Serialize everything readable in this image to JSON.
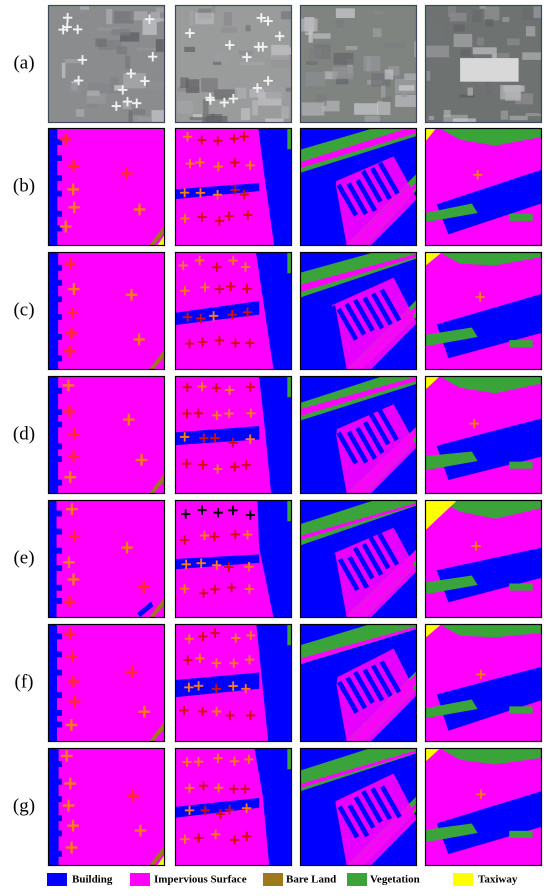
{
  "rows": [
    {
      "label": "(a)"
    },
    {
      "label": "(b)"
    },
    {
      "label": "(c)"
    },
    {
      "label": "(d)"
    },
    {
      "label": "(e)"
    },
    {
      "label": "(f)"
    },
    {
      "label": "(g)"
    }
  ],
  "legend": [
    {
      "label": "Building",
      "color": "#0000ff"
    },
    {
      "label": "Impervious Surface",
      "color": "#ff00ff"
    },
    {
      "label": "Bare Land",
      "color": "#9c7a1c"
    },
    {
      "label": "Vegetation",
      "color": "#3aa33a"
    },
    {
      "label": "Taxiway",
      "color": "#ffff00"
    }
  ]
}
